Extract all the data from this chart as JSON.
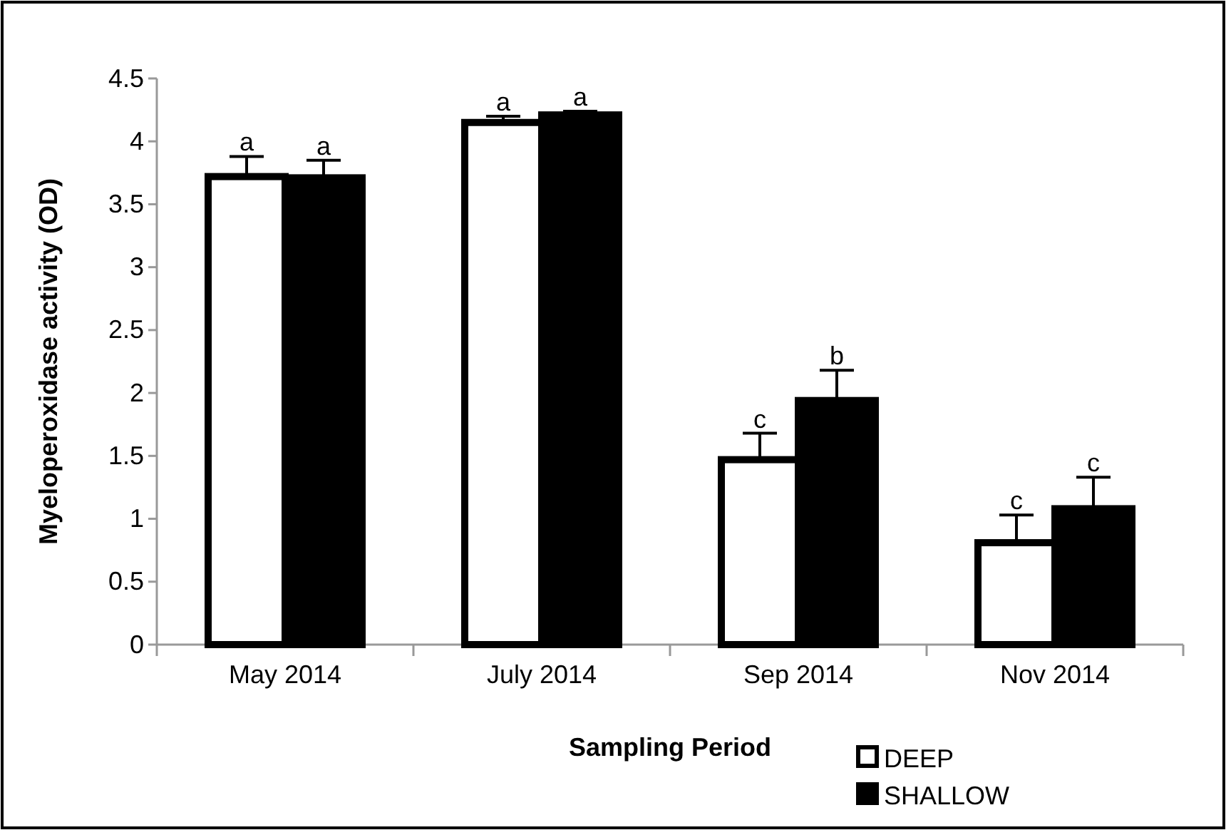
{
  "chart_data": {
    "type": "bar",
    "xlabel": "Sampling Period",
    "ylabel": "Myeloperoxidase activity (OD)",
    "categories": [
      "May 2014",
      "July 2014",
      "Sep 2014",
      "Nov 2014"
    ],
    "series": [
      {
        "name": "DEEP",
        "color": "#ffffff",
        "values": [
          3.72,
          4.15,
          1.47,
          0.81
        ],
        "errors": [
          0.16,
          0.05,
          0.21,
          0.22
        ],
        "value_labels": [
          "a",
          "a",
          "c",
          "c"
        ]
      },
      {
        "name": "SHALLOW",
        "color": "#000000",
        "values": [
          3.71,
          4.21,
          1.94,
          1.08
        ],
        "errors": [
          0.14,
          0.03,
          0.24,
          0.25
        ],
        "value_labels": [
          "a",
          "a",
          "b",
          "c"
        ]
      }
    ],
    "ylim": [
      0,
      4.5
    ],
    "yticks": [
      0,
      0.5,
      1,
      1.5,
      2,
      2.5,
      3,
      3.5,
      4,
      4.5
    ],
    "grid": false,
    "legend": "bottom right"
  }
}
